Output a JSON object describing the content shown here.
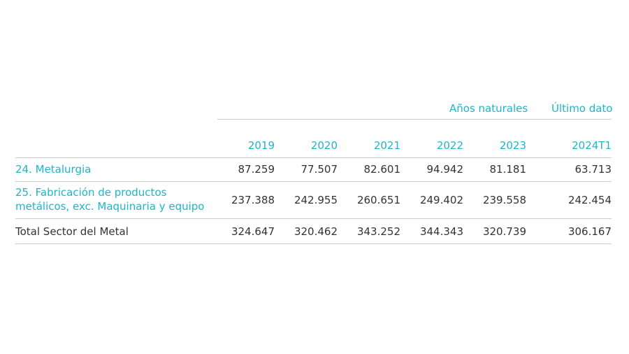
{
  "header": {
    "group_annual": "Años naturales",
    "group_last": "Último dato"
  },
  "columns": [
    "2019",
    "2020",
    "2021",
    "2022",
    "2023",
    "2024T1"
  ],
  "rows": [
    {
      "label_lines": [
        "24. Metalurgia"
      ],
      "values": [
        "87.259",
        "77.507",
        "82.601",
        "94.942",
        "81.181",
        "63.713"
      ]
    },
    {
      "label_lines": [
        "25. Fabricación de productos",
        "metálicos, exc. Maquinaria y equipo"
      ],
      "values": [
        "237.388",
        "242.955",
        "260.651",
        "249.402",
        "239.558",
        "242.454"
      ]
    },
    {
      "label_lines": [
        "Total Sector del Metal"
      ],
      "values": [
        "324.647",
        "320.462",
        "343.252",
        "344.343",
        "320.739",
        "306.167"
      ]
    }
  ],
  "colors": {
    "accent": "#1fb5c8",
    "text": "#333333",
    "rule": "#c9cdd3"
  }
}
